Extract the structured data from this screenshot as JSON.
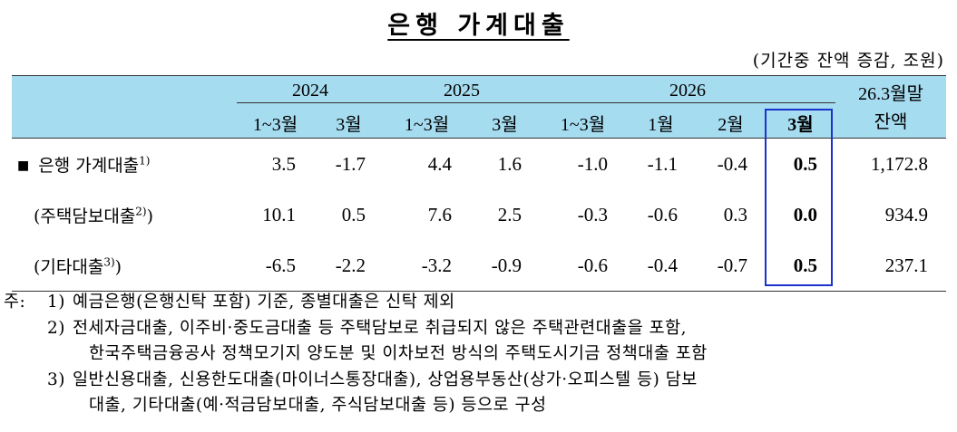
{
  "title": "은행 가계대출",
  "unit": "(기간중 잔액 증감, 조원)",
  "header": {
    "years": [
      "2024",
      "2025",
      "2026"
    ],
    "balance_label_1": "26.3월말",
    "balance_label_2": "잔액",
    "cols": [
      "1~3월",
      "3월",
      "1~3월",
      "3월",
      "1~3월",
      "1월",
      "2월",
      "3월"
    ]
  },
  "rows": [
    {
      "label": "은행 가계대출",
      "sup": "1)",
      "values": [
        "3.5",
        "-1.7",
        "4.4",
        "1.6",
        "-1.0",
        "-1.1",
        "-0.4",
        "0.5",
        "1,172.8"
      ]
    },
    {
      "label": "(주택담보대출",
      "sup": "2)",
      "tail": ")",
      "values": [
        "10.1",
        "0.5",
        "7.6",
        "2.5",
        "-0.3",
        "-0.6",
        "0.3",
        "0.0",
        "934.9"
      ]
    },
    {
      "label": "(기타대출",
      "sup": "3)",
      "tail": ")",
      "values": [
        "-6.5",
        "-2.2",
        "-3.2",
        "-0.9",
        "-0.6",
        "-0.4",
        "-0.7",
        "0.5",
        "237.1"
      ]
    }
  ],
  "bullet": "■",
  "notes": {
    "prefix": "주:",
    "n1_num": "1)",
    "n1": "예금은행(은행신탁 포함) 기준, 종별대출은 신탁 제외",
    "n2_num": "2)",
    "n2a": "전세자금대출, 이주비·중도금대출 등 주택담보로 취급되지 않은 주택관련대출을 포함,",
    "n2b": "한국주택금융공사 정책모기지 양도분 및 이차보전 방식의 주택도시기금 정책대출 포함",
    "n3_num": "3)",
    "n3a": "일반신용대출, 신용한도대출(마이너스통장대출), 상업용부동산(상가·오피스텔 등) 담보",
    "n3b": "대출, 기타대출(예·적금담보대출, 주식담보대출 등) 등으로 구성"
  },
  "colors": {
    "header_bg": "#a6dcf0",
    "highlight_border": "#1a33cc"
  }
}
